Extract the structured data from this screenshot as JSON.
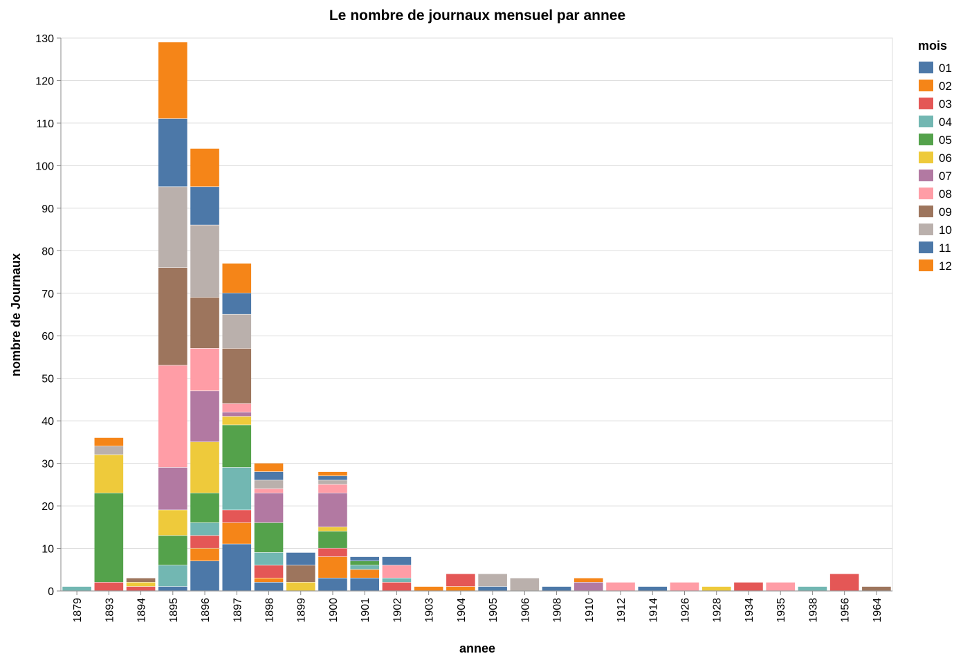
{
  "chart_data": {
    "type": "bar",
    "stacked": true,
    "title": "Le nombre de journaux mensuel par annee",
    "xlabel": "annee",
    "ylabel": "nombre de Journaux",
    "ylim": [
      0,
      130
    ],
    "yticks": [
      0,
      10,
      20,
      30,
      40,
      50,
      60,
      70,
      80,
      90,
      100,
      110,
      120,
      130
    ],
    "grid": true,
    "legend": {
      "title": "mois",
      "position": "right"
    },
    "categories": [
      "1879",
      "1893",
      "1894",
      "1895",
      "1896",
      "1897",
      "1898",
      "1899",
      "1900",
      "1901",
      "1902",
      "1903",
      "1904",
      "1905",
      "1906",
      "1908",
      "1910",
      "1912",
      "1914",
      "1926",
      "1928",
      "1934",
      "1935",
      "1938",
      "1956",
      "1964"
    ],
    "series": [
      {
        "name": "01",
        "color": "#4c78a8",
        "values": [
          0,
          0,
          0,
          1,
          7,
          11,
          2,
          0,
          3,
          3,
          0,
          0,
          0,
          1,
          0,
          1,
          0,
          0,
          1,
          0,
          0,
          0,
          0,
          0,
          0,
          0
        ]
      },
      {
        "name": "02",
        "color": "#f58518",
        "values": [
          0,
          0,
          0,
          0,
          3,
          5,
          1,
          0,
          5,
          2,
          0,
          0,
          1,
          0,
          0,
          0,
          0,
          0,
          0,
          0,
          0,
          0,
          0,
          0,
          0,
          0
        ]
      },
      {
        "name": "03",
        "color": "#e45756",
        "values": [
          0,
          2,
          1,
          0,
          3,
          3,
          3,
          0,
          2,
          0,
          2,
          0,
          3,
          0,
          0,
          0,
          0,
          0,
          0,
          0,
          0,
          2,
          0,
          0,
          4,
          0
        ]
      },
      {
        "name": "04",
        "color": "#72b7b2",
        "values": [
          1,
          0,
          0,
          5,
          3,
          10,
          3,
          0,
          0,
          1,
          1,
          0,
          0,
          0,
          0,
          0,
          0,
          0,
          0,
          0,
          0,
          0,
          0,
          1,
          0,
          0
        ]
      },
      {
        "name": "05",
        "color": "#54a24b",
        "values": [
          0,
          21,
          0,
          7,
          7,
          10,
          7,
          0,
          4,
          1,
          0,
          0,
          0,
          0,
          0,
          0,
          0,
          0,
          0,
          0,
          0,
          0,
          0,
          0,
          0,
          0
        ]
      },
      {
        "name": "06",
        "color": "#eeca3b",
        "values": [
          0,
          9,
          1,
          6,
          12,
          2,
          0,
          2,
          1,
          0,
          0,
          0,
          0,
          0,
          0,
          0,
          0,
          0,
          0,
          0,
          1,
          0,
          0,
          0,
          0,
          0
        ]
      },
      {
        "name": "07",
        "color": "#b279a2",
        "values": [
          0,
          0,
          0,
          10,
          12,
          1,
          7,
          0,
          8,
          0,
          0,
          0,
          0,
          0,
          0,
          0,
          2,
          0,
          0,
          0,
          0,
          0,
          0,
          0,
          0,
          0
        ]
      },
      {
        "name": "08",
        "color": "#ff9da6",
        "values": [
          0,
          0,
          0,
          24,
          10,
          2,
          1,
          0,
          2,
          0,
          3,
          0,
          0,
          0,
          0,
          0,
          0,
          2,
          0,
          2,
          0,
          0,
          2,
          0,
          0,
          0
        ]
      },
      {
        "name": "09",
        "color": "#9d755d",
        "values": [
          0,
          0,
          1,
          23,
          12,
          13,
          0,
          4,
          0,
          0,
          0,
          0,
          0,
          0,
          0,
          0,
          0,
          0,
          0,
          0,
          0,
          0,
          0,
          0,
          0,
          1
        ]
      },
      {
        "name": "10",
        "color": "#bab0ac",
        "values": [
          0,
          2,
          0,
          19,
          17,
          8,
          2,
          0,
          1,
          0,
          0,
          0,
          0,
          3,
          3,
          0,
          0,
          0,
          0,
          0,
          0,
          0,
          0,
          0,
          0,
          0
        ]
      },
      {
        "name": "11",
        "color": "#4c78a8",
        "values": [
          0,
          0,
          0,
          16,
          9,
          5,
          2,
          3,
          1,
          1,
          2,
          0,
          0,
          0,
          0,
          0,
          0,
          0,
          0,
          0,
          0,
          0,
          0,
          0,
          0,
          0
        ]
      },
      {
        "name": "12",
        "color": "#f58518",
        "values": [
          0,
          2,
          0,
          18,
          9,
          7,
          2,
          0,
          1,
          0,
          0,
          1,
          0,
          0,
          0,
          0,
          1,
          0,
          0,
          0,
          0,
          0,
          0,
          0,
          0,
          0
        ]
      }
    ]
  }
}
